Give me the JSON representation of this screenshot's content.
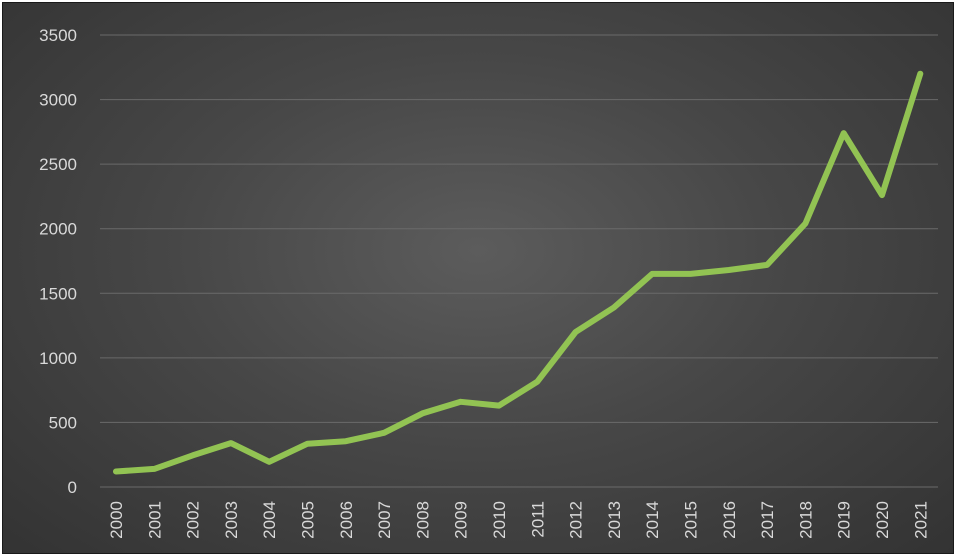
{
  "chart_data": {
    "type": "line",
    "title": "",
    "xlabel": "",
    "ylabel": "",
    "x": [
      "2000",
      "2001",
      "2002",
      "2003",
      "2004",
      "2005",
      "2006",
      "2007",
      "2008",
      "2009",
      "2010",
      "2011",
      "2012",
      "2013",
      "2014",
      "2015",
      "2016",
      "2017",
      "2018",
      "2019",
      "2020",
      "2021"
    ],
    "series": [
      {
        "values": [
          120,
          140,
          245,
          340,
          195,
          335,
          355,
          420,
          570,
          660,
          630,
          815,
          1200,
          1390,
          1650,
          1650,
          1680,
          1720,
          2040,
          2740,
          2260,
          3200
        ]
      }
    ],
    "ylim": [
      0,
      3500
    ],
    "yticks": [
      0,
      500,
      1000,
      1500,
      2000,
      2500,
      3000,
      3500
    ],
    "grid": true,
    "legend": "none",
    "colors": {
      "line": "#92c353",
      "grid": "#6a6a6a",
      "text": "#d9d9d9"
    }
  }
}
